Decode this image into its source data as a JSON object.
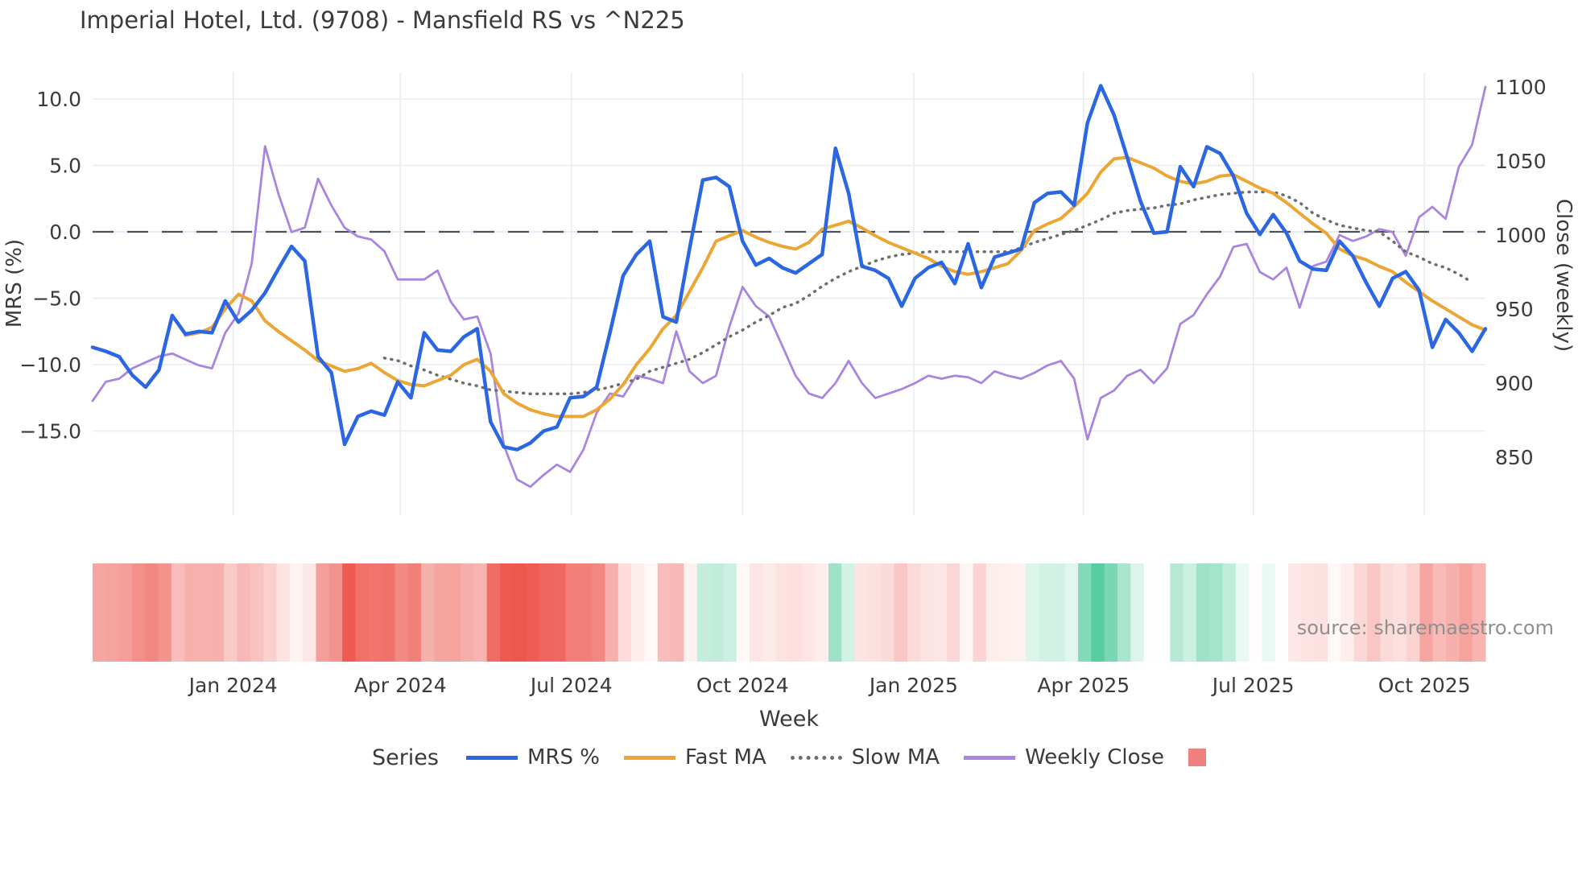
{
  "title": "Imperial Hotel, Ltd. (9708) - Mansfield RS vs ^N225",
  "source_note": "source: sharemaestro.com",
  "legend": {
    "title": "Series",
    "items": [
      {
        "label": "MRS %"
      },
      {
        "label": "Fast MA"
      },
      {
        "label": "Slow MA"
      },
      {
        "label": "Weekly Close"
      },
      {
        "label": "",
        "type": "heatmap-swatch"
      }
    ]
  },
  "colors": {
    "mrs": "#2b67e2",
    "fast_ma": "#eca636",
    "slow_ma": "#6e6e6e",
    "weekly_close": "#a985e0",
    "zero_line": "#4e5258",
    "grid": "#e9ebf1",
    "heat_negative": "#ee564d",
    "heat_positive": "#58cda0",
    "heat_legend_swatch": "#f08080",
    "text": "#3a3a3a",
    "source_text": "#8f8f8f"
  },
  "chart_data": {
    "type": "line",
    "title": "Imperial Hotel, Ltd. (9708) - Mansfield RS vs ^N225",
    "x_axis": {
      "label": "Week",
      "ticks": [
        {
          "label": "Jan 2024",
          "week": 10.6
        },
        {
          "label": "Apr 2024",
          "week": 23.2
        },
        {
          "label": "Jul 2024",
          "week": 36.1
        },
        {
          "label": "Oct 2024",
          "week": 49.0
        },
        {
          "label": "Jan 2025",
          "week": 61.9
        },
        {
          "label": "Apr 2025",
          "week": 74.7
        },
        {
          "label": "Jul 2025",
          "week": 87.5
        },
        {
          "label": "Oct 2025",
          "week": 100.4
        }
      ]
    },
    "y_left": {
      "label": "MRS (%)",
      "ticks": [
        10.0,
        5.0,
        0.0,
        -5.0,
        -10.0,
        -15.0
      ],
      "range": [
        -17.5,
        12.0
      ],
      "zero_dashed_line": 0.0
    },
    "y_right": {
      "label": "Close (weekly)",
      "ticks": [
        1100,
        1050,
        1000,
        950,
        900,
        850
      ],
      "range": [
        820,
        1110
      ]
    },
    "weeks": 106,
    "series": [
      {
        "name": "MRS %",
        "axis": "left",
        "style": "solid",
        "color": "#2b67e2",
        "width": 4.5,
        "values": [
          -8.7,
          -9.0,
          -9.4,
          -10.8,
          -11.7,
          -10.4,
          -6.3,
          -7.7,
          -7.5,
          -7.6,
          -5.2,
          -6.8,
          -5.9,
          -4.6,
          -2.8,
          -1.1,
          -2.2,
          -9.4,
          -10.6,
          -16.0,
          -13.9,
          -13.5,
          -13.8,
          -11.3,
          -12.5,
          -7.6,
          -8.9,
          -9.0,
          -7.9,
          -7.3,
          -14.3,
          -16.2,
          -16.4,
          -15.9,
          -15.0,
          -14.7,
          -12.5,
          -12.4,
          -11.7,
          -7.6,
          -3.3,
          -1.7,
          -0.7,
          -6.4,
          -6.8,
          -1.3,
          3.9,
          4.1,
          3.4,
          -0.7,
          -2.5,
          -2.0,
          -2.7,
          -3.1,
          -2.4,
          -1.7,
          6.3,
          2.9,
          -2.6,
          -2.9,
          -3.5,
          -5.6,
          -3.5,
          -2.7,
          -2.3,
          -3.9,
          -0.9,
          -4.2,
          -1.9,
          -1.6,
          -1.3,
          2.2,
          2.9,
          3.0,
          2.0,
          8.2,
          11.0,
          8.8,
          5.6,
          2.3,
          -0.1,
          0.0,
          4.9,
          3.4,
          6.4,
          5.9,
          4.2,
          1.4,
          -0.2,
          1.3,
          -0.1,
          -2.2,
          -2.8,
          -2.9,
          -0.7,
          -1.8,
          -3.8,
          -5.6,
          -3.5,
          -3.0,
          -4.4,
          -8.7,
          -6.6,
          -7.6,
          -9.0,
          -7.3
        ]
      },
      {
        "name": "Fast MA",
        "axis": "left",
        "style": "solid",
        "color": "#eca636",
        "width": 4,
        "values": [
          null,
          null,
          null,
          null,
          null,
          null,
          null,
          -7.8,
          -7.6,
          -7.2,
          -5.8,
          -4.7,
          -5.2,
          -6.7,
          -7.5,
          -8.2,
          -8.9,
          -9.7,
          -10.1,
          -10.5,
          -10.3,
          -9.9,
          -10.6,
          -11.2,
          -11.5,
          -11.6,
          -11.2,
          -10.8,
          -10.0,
          -9.6,
          -10.5,
          -12.2,
          -12.9,
          -13.4,
          -13.7,
          -13.9,
          -13.9,
          -13.9,
          -13.4,
          -12.6,
          -11.5,
          -10.0,
          -8.8,
          -7.3,
          -6.3,
          -4.5,
          -2.7,
          -0.7,
          -0.3,
          0.1,
          -0.4,
          -0.8,
          -1.1,
          -1.3,
          -0.8,
          0.2,
          0.5,
          0.8,
          0.3,
          -0.3,
          -0.8,
          -1.2,
          -1.6,
          -2.0,
          -2.6,
          -3.0,
          -3.2,
          -3.0,
          -2.7,
          -2.4,
          -1.4,
          0.1,
          0.6,
          1.0,
          1.9,
          2.9,
          4.5,
          5.5,
          5.6,
          5.2,
          4.8,
          4.2,
          3.8,
          3.6,
          3.8,
          4.2,
          4.3,
          3.8,
          3.3,
          2.9,
          2.2,
          1.4,
          0.6,
          -0.1,
          -1.3,
          -1.8,
          -2.1,
          -2.6,
          -3.0,
          -3.8,
          -4.5,
          -5.2,
          -5.8,
          -6.4,
          -7.0,
          -7.4
        ]
      },
      {
        "name": "Slow MA",
        "axis": "left",
        "style": "dotted",
        "color": "#6e6e6e",
        "width": 3.5,
        "values": [
          null,
          null,
          null,
          null,
          null,
          null,
          null,
          null,
          null,
          null,
          null,
          null,
          null,
          null,
          null,
          null,
          null,
          null,
          null,
          null,
          null,
          null,
          -9.5,
          -9.7,
          -10.1,
          -10.4,
          -10.8,
          -11.1,
          -11.4,
          -11.6,
          -11.9,
          -12.0,
          -12.1,
          -12.2,
          -12.2,
          -12.2,
          -12.2,
          -12.1,
          -11.9,
          -11.7,
          -11.4,
          -11.1,
          -10.5,
          -10.2,
          -9.9,
          -9.6,
          -9.1,
          -8.5,
          -7.9,
          -7.4,
          -6.8,
          -6.3,
          -5.7,
          -5.4,
          -4.8,
          -4.1,
          -3.5,
          -3.0,
          -2.6,
          -2.2,
          -1.9,
          -1.7,
          -1.6,
          -1.5,
          -1.5,
          -1.5,
          -1.5,
          -1.5,
          -1.5,
          -1.5,
          -1.2,
          -0.8,
          -0.5,
          -0.2,
          0.1,
          0.5,
          0.9,
          1.4,
          1.6,
          1.7,
          1.8,
          2.0,
          2.1,
          2.4,
          2.6,
          2.8,
          2.9,
          3.0,
          3.0,
          3.0,
          2.7,
          2.2,
          1.4,
          0.9,
          0.5,
          0.3,
          0.1,
          0.0,
          -0.7,
          -1.5,
          -1.9,
          -2.4,
          -2.7,
          -3.2,
          -3.8,
          null
        ]
      },
      {
        "name": "Weekly Close",
        "axis": "right",
        "style": "solid",
        "color": "#a985e0",
        "width": 2.8,
        "values": [
          888,
          901,
          903,
          910,
          914,
          918,
          920,
          916,
          912,
          910,
          934,
          947,
          981,
          1060,
          1028,
          1002,
          1005,
          1038,
          1020,
          1005,
          999,
          997,
          989,
          970,
          970,
          970,
          976,
          955,
          943,
          945,
          920,
          858,
          835,
          830,
          838,
          845,
          840,
          855,
          880,
          893,
          891,
          905,
          903,
          900,
          935,
          908,
          900,
          905,
          938,
          965,
          952,
          945,
          925,
          905,
          893,
          890,
          900,
          915,
          900,
          890,
          893,
          896,
          900,
          905,
          903,
          905,
          904,
          900,
          908,
          905,
          903,
          907,
          912,
          915,
          903,
          862,
          890,
          895,
          905,
          909,
          900,
          910,
          940,
          946,
          960,
          972,
          992,
          994,
          975,
          970,
          978,
          951,
          979,
          982,
          1000,
          996,
          999,
          1004,
          1002,
          986,
          1012,
          1019,
          1011,
          1046,
          1061,
          1100
        ]
      }
    ],
    "heatmap": {
      "description": "weekly strip colored by MRS % value (red negative, green positive)",
      "source_series": "MRS %",
      "negative_color": "#ee564d",
      "positive_color": "#58cda0"
    }
  }
}
